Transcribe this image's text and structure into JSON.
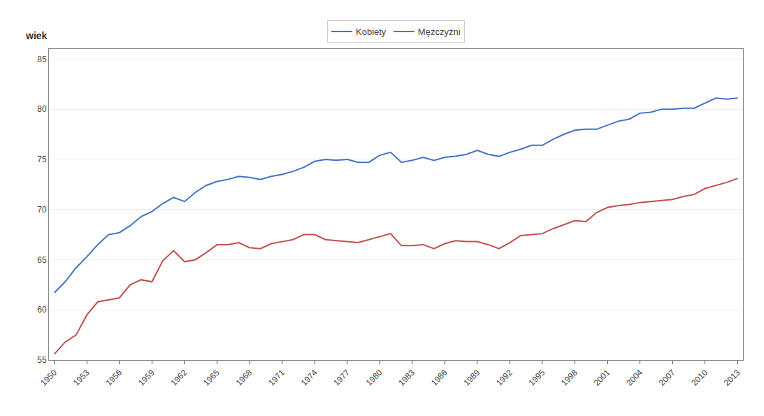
{
  "chart_data": {
    "type": "line",
    "ylabel": "wiek",
    "x": [
      1950,
      1951,
      1952,
      1953,
      1954,
      1955,
      1956,
      1957,
      1958,
      1959,
      1960,
      1961,
      1962,
      1963,
      1964,
      1965,
      1966,
      1967,
      1968,
      1969,
      1970,
      1971,
      1972,
      1973,
      1974,
      1975,
      1976,
      1977,
      1978,
      1979,
      1980,
      1981,
      1982,
      1983,
      1984,
      1985,
      1986,
      1987,
      1988,
      1989,
      1990,
      1991,
      1992,
      1993,
      1994,
      1995,
      1996,
      1997,
      1998,
      1999,
      2000,
      2001,
      2002,
      2003,
      2004,
      2005,
      2006,
      2007,
      2008,
      2009,
      2010,
      2011,
      2012,
      2013
    ],
    "series": [
      {
        "name": "Kobiety",
        "color": "#4472C4",
        "values": [
          61.7,
          62.8,
          64.2,
          65.3,
          66.5,
          67.5,
          67.7,
          68.4,
          69.3,
          69.8,
          70.6,
          71.2,
          70.8,
          71.7,
          72.4,
          72.8,
          73.0,
          73.3,
          73.2,
          73.0,
          73.3,
          73.5,
          73.8,
          74.2,
          74.8,
          75.0,
          74.9,
          75.0,
          74.7,
          74.7,
          75.4,
          75.7,
          74.7,
          74.9,
          75.2,
          74.9,
          75.2,
          75.3,
          75.5,
          75.9,
          75.5,
          75.3,
          75.7,
          76.0,
          76.4,
          76.4,
          77.0,
          77.5,
          77.9,
          78.0,
          78.0,
          78.4,
          78.8,
          79.0,
          79.6,
          79.7,
          80.0,
          80.0,
          80.1,
          80.1,
          80.6,
          81.1,
          81.0,
          81.1
        ]
      },
      {
        "name": "Mężczyźni",
        "color": "#C0504D",
        "values": [
          55.6,
          56.8,
          57.5,
          59.5,
          60.8,
          61.0,
          61.2,
          62.5,
          63.0,
          62.8,
          64.9,
          65.9,
          64.8,
          65.0,
          65.7,
          66.5,
          66.5,
          66.7,
          66.2,
          66.1,
          66.6,
          66.8,
          67.0,
          67.5,
          67.5,
          67.0,
          66.9,
          66.8,
          66.7,
          67.0,
          67.3,
          67.6,
          66.4,
          66.4,
          66.5,
          66.1,
          66.6,
          66.9,
          66.8,
          66.8,
          66.5,
          66.1,
          66.7,
          67.4,
          67.5,
          67.6,
          68.1,
          68.5,
          68.9,
          68.8,
          69.7,
          70.2,
          70.4,
          70.5,
          70.7,
          70.8,
          70.9,
          71.0,
          71.3,
          71.5,
          72.1,
          72.4,
          72.7,
          73.1
        ]
      }
    ],
    "xlim": [
      1949.5,
      2013.5
    ],
    "xticks": [
      1950,
      1953,
      1956,
      1959,
      1962,
      1965,
      1968,
      1971,
      1974,
      1977,
      1980,
      1983,
      1986,
      1989,
      1992,
      1995,
      1998,
      2001,
      2004,
      2007,
      2010,
      2013
    ],
    "ylim": [
      55,
      86
    ],
    "yticks": [
      55,
      60,
      65,
      70,
      75,
      80,
      85
    ],
    "grid": true,
    "legend": "top"
  }
}
